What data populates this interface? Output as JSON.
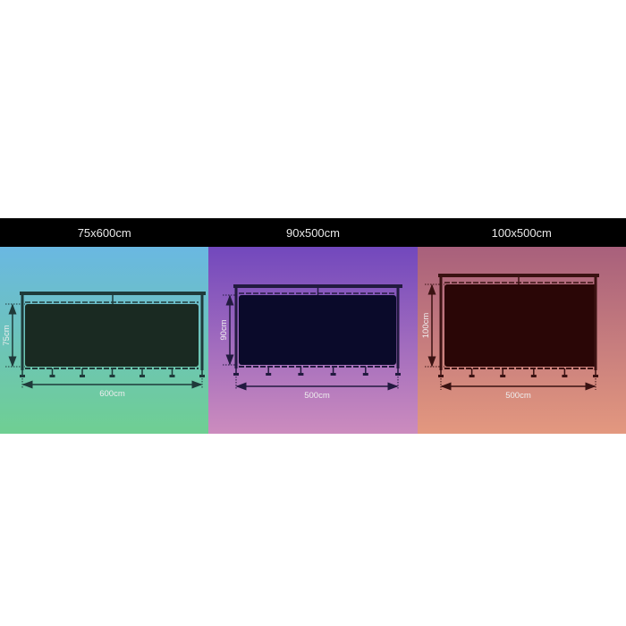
{
  "panels": [
    {
      "title": "75x600cm",
      "height_label": "75cm",
      "width_label": "600cm",
      "bg_top": "#6ab8e2",
      "bg_bottom": "#6fcf92",
      "screen_color": "#1a2a22",
      "frame_color": "#1f3a3a"
    },
    {
      "title": "90x500cm",
      "height_label": "90cm",
      "width_label": "500cm",
      "bg_top": "#7248bd",
      "bg_bottom": "#cc8cbe",
      "screen_color": "#0a0a2a",
      "frame_color": "#221a40"
    },
    {
      "title": "100x500cm",
      "height_label": "100cm",
      "width_label": "500cm",
      "bg_top": "#a8607c",
      "bg_bottom": "#e3987f",
      "screen_color": "#2a0606",
      "frame_color": "#3a1212"
    }
  ]
}
